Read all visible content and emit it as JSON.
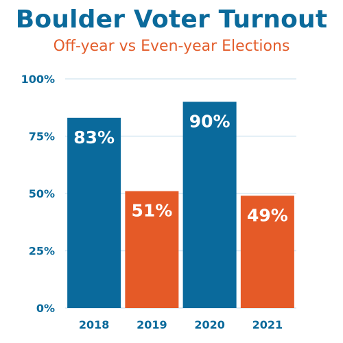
{
  "title": "Boulder Voter Turnout",
  "subtitle": "Off-year vs Even-year Elections",
  "colors": {
    "title": "#0b6a9b",
    "subtitle": "#e35d2b",
    "even_year": "#0a6a9c",
    "odd_year": "#e55a27",
    "gridline": "#d8e8f2",
    "axis_label": "#0b6a9b",
    "bar_label": "#ffffff"
  },
  "chart_data": {
    "type": "bar",
    "title": "Boulder Voter Turnout",
    "subtitle": "Off-year vs Even-year Elections",
    "categories": [
      "2018",
      "2019",
      "2020",
      "2021"
    ],
    "values": [
      83,
      51,
      90,
      49
    ],
    "value_labels": [
      "83%",
      "51%",
      "90%",
      "49%"
    ],
    "bar_colors": [
      "#0a6a9c",
      "#e55a27",
      "#0a6a9c",
      "#e55a27"
    ],
    "ylim": [
      0,
      100
    ],
    "yticks": [
      0,
      25,
      50,
      75,
      100
    ],
    "ytick_labels": [
      "0%",
      "25%",
      "50%",
      "75%",
      "100%"
    ],
    "xlabel": "",
    "ylabel": "",
    "grid": true,
    "legend": false
  }
}
